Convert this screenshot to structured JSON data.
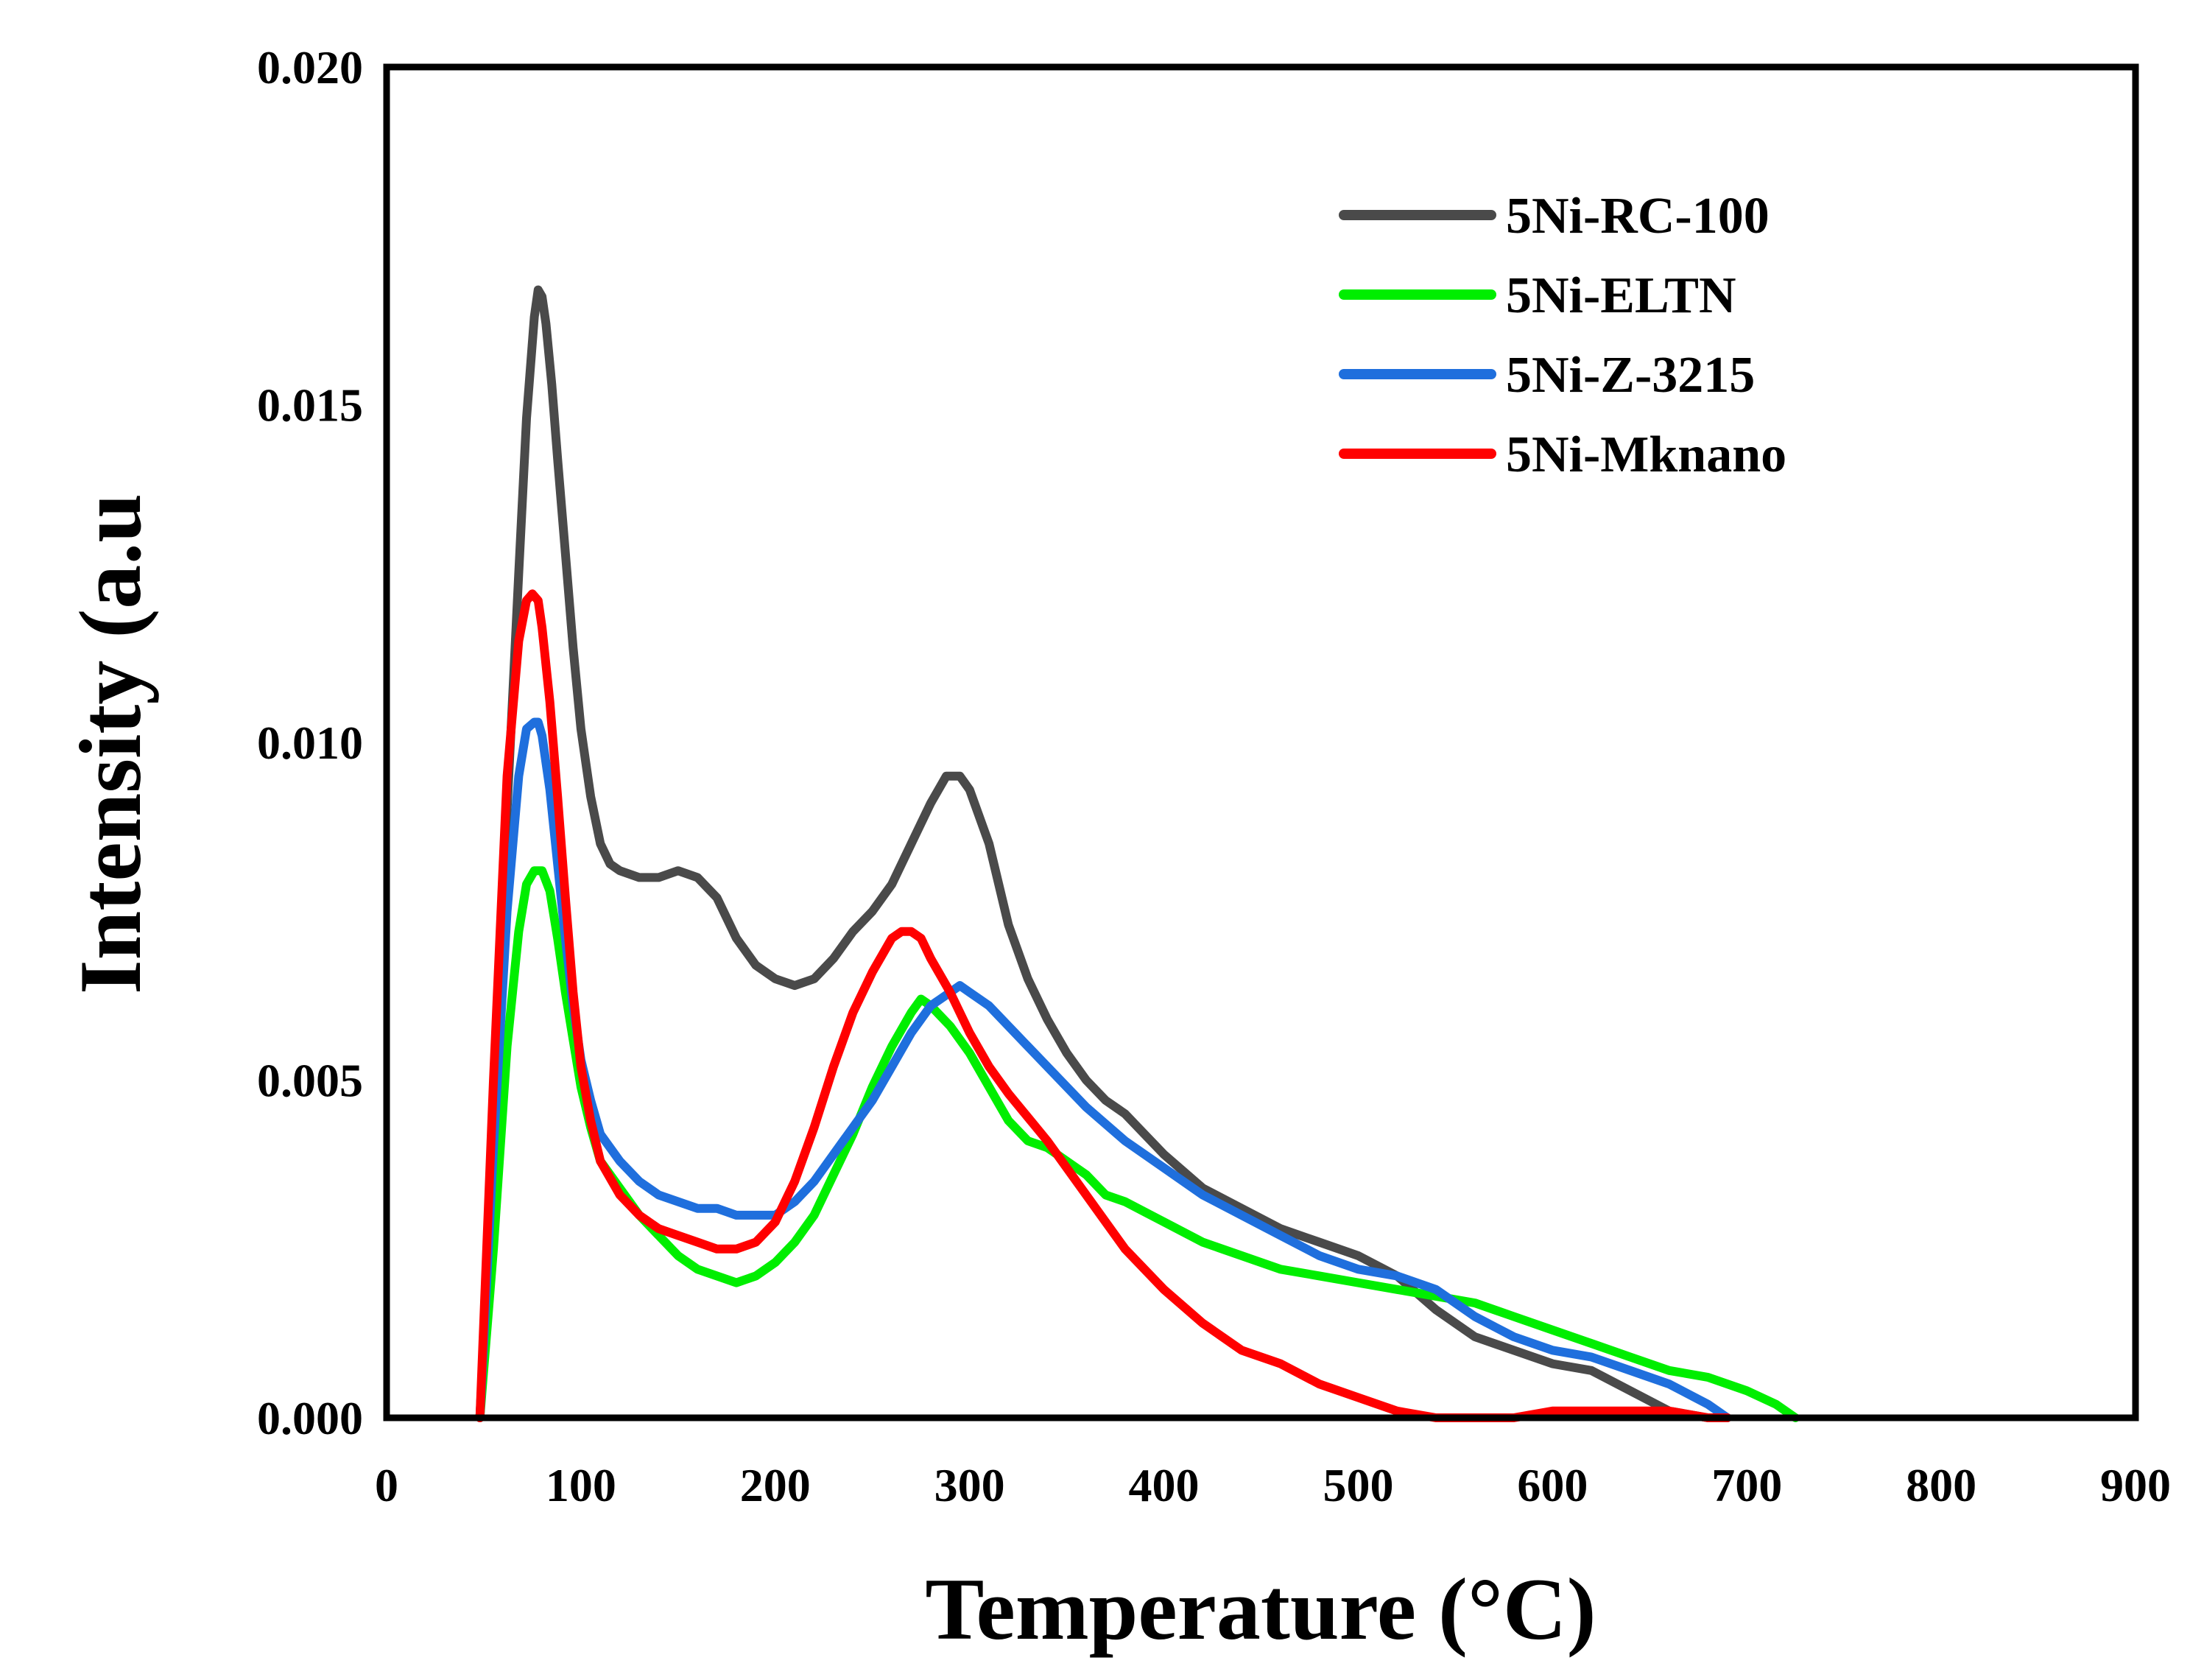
{
  "chart_data": {
    "type": "line",
    "title": "",
    "xlabel": "Temperature (°C)",
    "ylabel": "Intensity (a.u",
    "xlim": [
      0,
      900
    ],
    "ylim": [
      0,
      0.02
    ],
    "xticks": [
      "0",
      "100",
      "200",
      "300",
      "400",
      "500",
      "600",
      "700",
      "800",
      "900"
    ],
    "yticks": [
      "0.000",
      "0.005",
      "0.010",
      "0.015",
      "0.020"
    ],
    "grid": false,
    "legend_position": "top-right",
    "series": [
      {
        "name": "5Ni-RC-100",
        "color": "#4a4a4a",
        "x": [
          48,
          55,
          62,
          68,
          72,
          76,
          78,
          80,
          82,
          85,
          88,
          92,
          96,
          100,
          105,
          110,
          115,
          120,
          130,
          140,
          150,
          160,
          170,
          180,
          190,
          200,
          210,
          220,
          230,
          240,
          250,
          260,
          270,
          280,
          288,
          295,
          300,
          310,
          320,
          330,
          340,
          350,
          360,
          370,
          380,
          390,
          400,
          420,
          440,
          460,
          480,
          500,
          520,
          540,
          560,
          580,
          600,
          620,
          640,
          660,
          680
        ],
        "y": [
          0.0,
          0.004,
          0.009,
          0.0125,
          0.0148,
          0.0163,
          0.0167,
          0.0166,
          0.0162,
          0.0153,
          0.0142,
          0.0128,
          0.0114,
          0.0102,
          0.0092,
          0.0085,
          0.0082,
          0.0081,
          0.008,
          0.008,
          0.0081,
          0.008,
          0.0077,
          0.0071,
          0.0067,
          0.0065,
          0.0064,
          0.0065,
          0.0068,
          0.0072,
          0.0075,
          0.0079,
          0.0085,
          0.0091,
          0.0095,
          0.0095,
          0.0093,
          0.0085,
          0.0073,
          0.0065,
          0.0059,
          0.0054,
          0.005,
          0.0047,
          0.0045,
          0.0042,
          0.0039,
          0.0034,
          0.0031,
          0.0028,
          0.0026,
          0.0024,
          0.0021,
          0.0016,
          0.0012,
          0.001,
          0.0008,
          0.0007,
          0.0004,
          0.0001,
          0.0
        ]
      },
      {
        "name": "5Ni-ELTN",
        "color": "#00ee00",
        "x": [
          48,
          55,
          62,
          68,
          72,
          76,
          80,
          84,
          88,
          92,
          96,
          100,
          105,
          110,
          120,
          130,
          140,
          150,
          160,
          170,
          180,
          190,
          200,
          210,
          220,
          230,
          240,
          250,
          260,
          270,
          275,
          280,
          290,
          300,
          310,
          320,
          330,
          340,
          350,
          360,
          370,
          380,
          400,
          420,
          440,
          460,
          480,
          500,
          520,
          540,
          560,
          580,
          600,
          620,
          640,
          660,
          680,
          700,
          715,
          725
        ],
        "y": [
          0.0,
          0.0025,
          0.0055,
          0.0072,
          0.0079,
          0.0081,
          0.0081,
          0.0078,
          0.0071,
          0.0063,
          0.0056,
          0.0049,
          0.0043,
          0.0038,
          0.0034,
          0.003,
          0.0027,
          0.0024,
          0.0022,
          0.0021,
          0.002,
          0.0021,
          0.0023,
          0.0026,
          0.003,
          0.0036,
          0.0042,
          0.0049,
          0.0055,
          0.006,
          0.0062,
          0.0061,
          0.0058,
          0.0054,
          0.0049,
          0.0044,
          0.0041,
          0.004,
          0.0038,
          0.0036,
          0.0033,
          0.0032,
          0.0029,
          0.0026,
          0.0024,
          0.0022,
          0.0021,
          0.002,
          0.0019,
          0.0018,
          0.0017,
          0.0015,
          0.0013,
          0.0011,
          0.0009,
          0.0007,
          0.0006,
          0.0004,
          0.0002,
          0.0
        ]
      },
      {
        "name": "5Ni-Z-3215",
        "color": "#1f6fdd",
        "x": [
          48,
          55,
          62,
          68,
          72,
          76,
          78,
          80,
          84,
          88,
          92,
          96,
          100,
          105,
          110,
          120,
          130,
          140,
          150,
          160,
          170,
          180,
          190,
          200,
          210,
          220,
          230,
          240,
          250,
          260,
          270,
          280,
          290,
          295,
          300,
          310,
          320,
          330,
          340,
          350,
          360,
          380,
          400,
          420,
          440,
          460,
          480,
          500,
          520,
          540,
          560,
          580,
          600,
          620,
          640,
          660,
          680,
          690
        ],
        "y": [
          0.0,
          0.004,
          0.0075,
          0.0095,
          0.0102,
          0.0103,
          0.0103,
          0.0101,
          0.0093,
          0.0082,
          0.0071,
          0.0061,
          0.0053,
          0.0047,
          0.0042,
          0.0038,
          0.0035,
          0.0033,
          0.0032,
          0.0031,
          0.0031,
          0.003,
          0.003,
          0.003,
          0.0032,
          0.0035,
          0.0039,
          0.0043,
          0.0047,
          0.0052,
          0.0057,
          0.0061,
          0.0063,
          0.0064,
          0.0063,
          0.0061,
          0.0058,
          0.0055,
          0.0052,
          0.0049,
          0.0046,
          0.0041,
          0.0037,
          0.0033,
          0.003,
          0.0027,
          0.0024,
          0.0022,
          0.0021,
          0.0019,
          0.0015,
          0.0012,
          0.001,
          0.0009,
          0.0007,
          0.0005,
          0.0002,
          0.0
        ]
      },
      {
        "name": "5Ni-Mknano",
        "color": "#ff0000",
        "x": [
          48,
          55,
          62,
          68,
          72,
          75,
          78,
          80,
          84,
          88,
          92,
          96,
          100,
          105,
          110,
          120,
          130,
          140,
          150,
          160,
          170,
          180,
          190,
          200,
          210,
          220,
          230,
          240,
          250,
          260,
          265,
          270,
          275,
          280,
          290,
          300,
          310,
          320,
          340,
          360,
          380,
          400,
          420,
          440,
          460,
          480,
          500,
          520,
          540,
          560,
          580,
          600,
          620,
          640,
          660,
          680,
          690
        ],
        "y": [
          0.0,
          0.005,
          0.0095,
          0.0115,
          0.0121,
          0.0122,
          0.0121,
          0.0117,
          0.0106,
          0.0092,
          0.0077,
          0.0063,
          0.0052,
          0.0044,
          0.0038,
          0.0033,
          0.003,
          0.0028,
          0.0027,
          0.0026,
          0.0025,
          0.0025,
          0.0026,
          0.0029,
          0.0035,
          0.0043,
          0.0052,
          0.006,
          0.0066,
          0.0071,
          0.0072,
          0.0072,
          0.0071,
          0.0068,
          0.0063,
          0.0057,
          0.0052,
          0.0048,
          0.0041,
          0.0033,
          0.0025,
          0.0019,
          0.0014,
          0.001,
          0.0008,
          0.0005,
          0.0003,
          0.0001,
          0.0,
          0.0,
          0.0,
          0.0001,
          0.0001,
          0.0001,
          0.0001,
          0.0,
          0.0
        ]
      }
    ]
  }
}
